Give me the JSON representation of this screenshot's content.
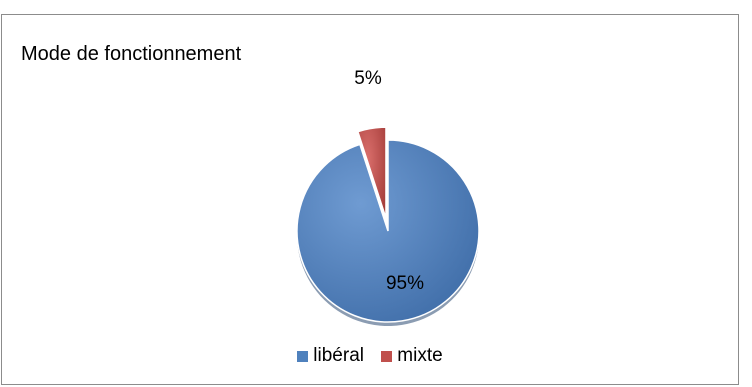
{
  "chart_data": {
    "type": "pie",
    "title": "Mode de fonctionnement",
    "categories": [
      "libéral",
      "mixte"
    ],
    "values": [
      95,
      5
    ],
    "data_labels": [
      "95%",
      "5%"
    ],
    "exploded": [
      "mixte"
    ],
    "colors": [
      "#4f81bd",
      "#c0504d"
    ],
    "legend_position": "bottom",
    "style": "3d-shaded"
  }
}
